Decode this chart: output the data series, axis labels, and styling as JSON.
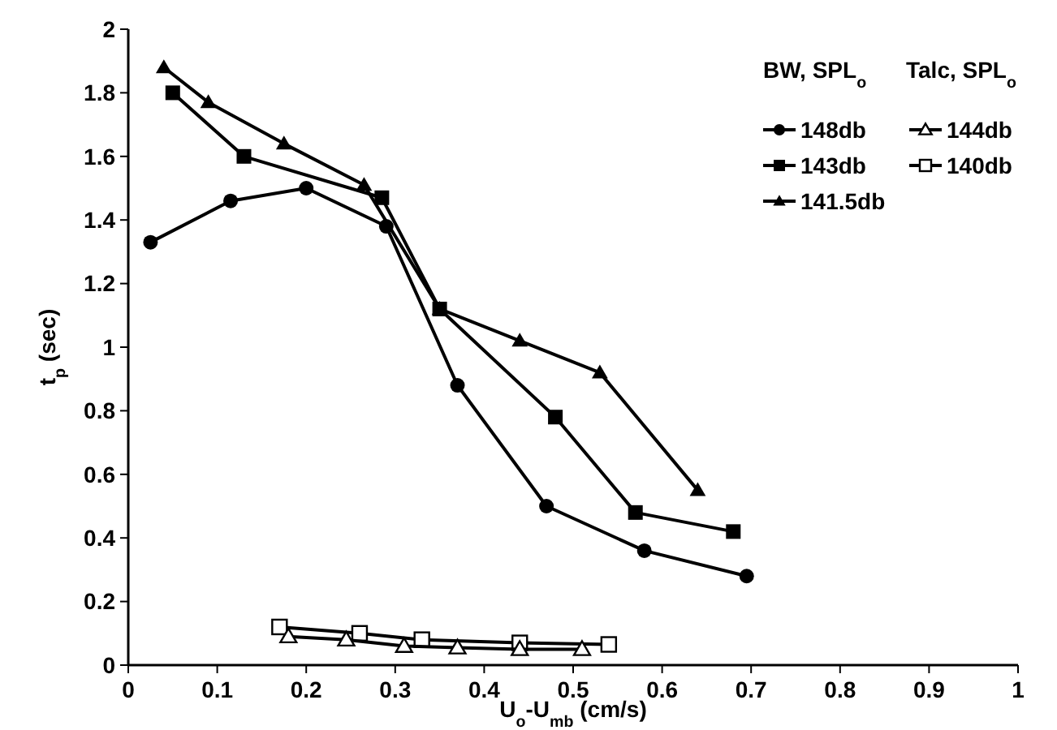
{
  "chart_data": {
    "type": "line",
    "xlabel": "U$_{o}$-U$_{mb}$ (cm/s)",
    "ylabel": "t$_{p}$ (sec)",
    "legend_title": "BW, SPL$_{o}$",
    "annotations": [
      "Talc, SPL$_{o}$"
    ],
    "xlim": [
      0,
      1
    ],
    "xticks": [
      0,
      0.1,
      0.2,
      0.3,
      0.4,
      0.5,
      0.6,
      0.7,
      0.8,
      0.9,
      1
    ],
    "ylim": [
      0,
      2
    ],
    "yticks": [
      0,
      0.2,
      0.4,
      0.6,
      0.8,
      1,
      1.2,
      1.4,
      1.6,
      1.8,
      2
    ],
    "grid": false,
    "legend": "top right",
    "line_style": "solid",
    "series": [
      {
        "name": "148db",
        "color": "#000000",
        "marker": "circle",
        "x": [
          0.025,
          0.115,
          0.2,
          0.29,
          0.37,
          0.47,
          0.58,
          0.695
        ],
        "values": [
          1.33,
          1.46,
          1.5,
          1.38,
          0.88,
          0.5,
          0.36,
          0.28
        ]
      },
      {
        "name": "143db",
        "color": "#000000",
        "marker": "square",
        "x": [
          0.05,
          0.13,
          0.285,
          0.35,
          0.48,
          0.57,
          0.68
        ],
        "values": [
          1.8,
          1.6,
          1.47,
          1.12,
          0.78,
          0.48,
          0.42
        ]
      },
      {
        "name": "141.5db",
        "color": "#000000",
        "marker": "triangle",
        "x": [
          0.04,
          0.09,
          0.175,
          0.265,
          0.35,
          0.44,
          0.53,
          0.64
        ],
        "values": [
          1.88,
          1.77,
          1.64,
          1.51,
          1.12,
          1.02,
          0.92,
          0.55
        ]
      },
      {
        "name": "144db",
        "color": "#000000",
        "marker": "triangle-open",
        "x": [
          0.18,
          0.245,
          0.31,
          0.37,
          0.44,
          0.51
        ],
        "values": [
          0.09,
          0.08,
          0.06,
          0.055,
          0.05,
          0.05
        ]
      },
      {
        "name": "140db",
        "color": "#000000",
        "marker": "square-open",
        "x": [
          0.17,
          0.26,
          0.33,
          0.44,
          0.54
        ],
        "values": [
          0.12,
          0.1,
          0.08,
          0.07,
          0.065
        ]
      }
    ]
  }
}
